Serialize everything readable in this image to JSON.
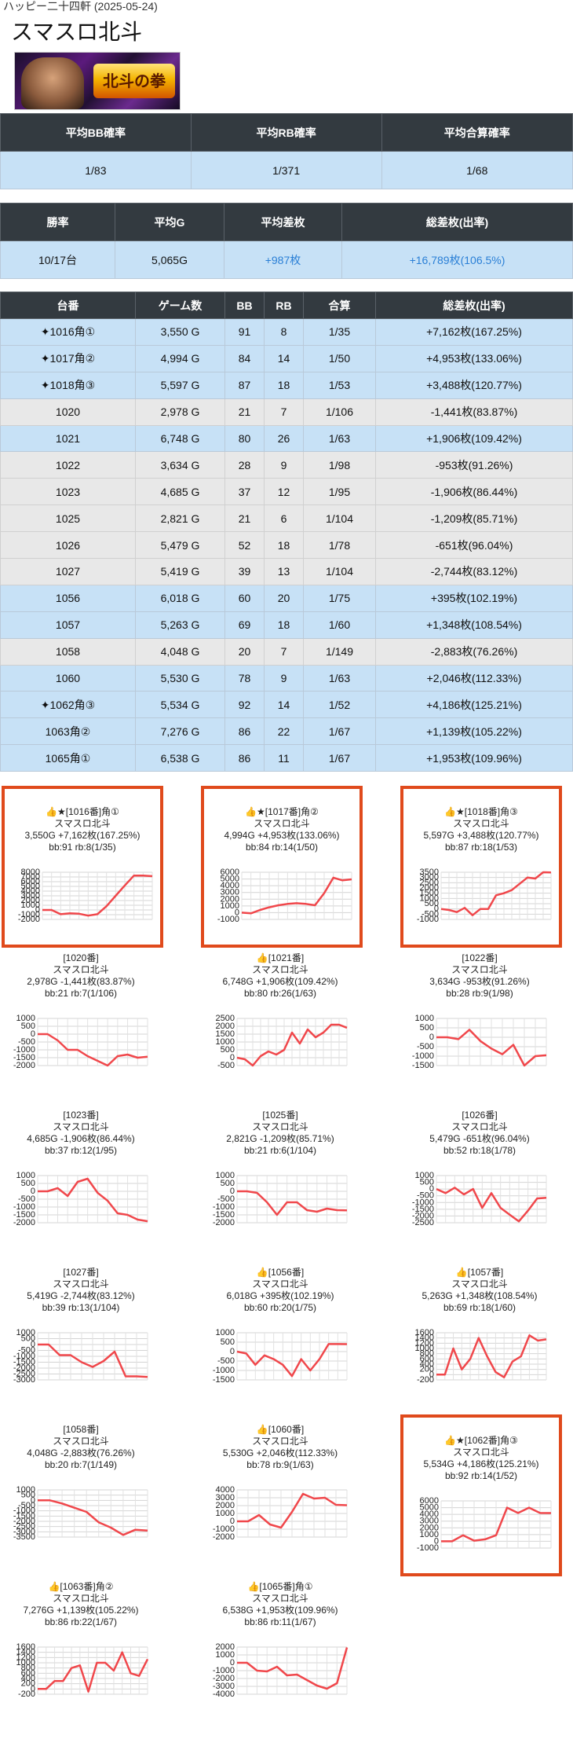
{
  "store_line": "ハッピー二十四軒 (2025-05-24)",
  "machine": "スマスロ北斗",
  "banner_logo": "北斗の拳",
  "summary1": {
    "headers": [
      "平均BB確率",
      "平均RB確率",
      "平均合算確率"
    ],
    "values": [
      "1/83",
      "1/371",
      "1/68"
    ]
  },
  "summary2": {
    "headers": [
      "勝率",
      "平均G",
      "平均差枚",
      "総差枚(出率)"
    ],
    "values": [
      "10/17台",
      "5,065G",
      "+987枚",
      "+16,789枚(106.5%)"
    ]
  },
  "table": {
    "headers": [
      "台番",
      "ゲーム数",
      "BB",
      "RB",
      "合算",
      "総差枚(出率)"
    ],
    "rows": [
      {
        "id": "1016角①",
        "spark": true,
        "games": "3,550 G",
        "bb": "91",
        "rb": "8",
        "total": "1/35",
        "diff": "+7,162枚(167.25%)",
        "color": "blue"
      },
      {
        "id": "1017角②",
        "spark": true,
        "games": "4,994 G",
        "bb": "84",
        "rb": "14",
        "total": "1/50",
        "diff": "+4,953枚(133.06%)",
        "color": "blue"
      },
      {
        "id": "1018角③",
        "spark": true,
        "games": "5,597 G",
        "bb": "87",
        "rb": "18",
        "total": "1/53",
        "diff": "+3,488枚(120.77%)",
        "color": "blue"
      },
      {
        "id": "1020",
        "spark": false,
        "games": "2,978 G",
        "bb": "21",
        "rb": "7",
        "total": "1/106",
        "diff": "-1,441枚(83.87%)",
        "color": "gray"
      },
      {
        "id": "1021",
        "spark": false,
        "games": "6,748 G",
        "bb": "80",
        "rb": "26",
        "total": "1/63",
        "diff": "+1,906枚(109.42%)",
        "color": "blue"
      },
      {
        "id": "1022",
        "spark": false,
        "games": "3,634 G",
        "bb": "28",
        "rb": "9",
        "total": "1/98",
        "diff": "-953枚(91.26%)",
        "color": "gray"
      },
      {
        "id": "1023",
        "spark": false,
        "games": "4,685 G",
        "bb": "37",
        "rb": "12",
        "total": "1/95",
        "diff": "-1,906枚(86.44%)",
        "color": "gray"
      },
      {
        "id": "1025",
        "spark": false,
        "games": "2,821 G",
        "bb": "21",
        "rb": "6",
        "total": "1/104",
        "diff": "-1,209枚(85.71%)",
        "color": "gray"
      },
      {
        "id": "1026",
        "spark": false,
        "games": "5,479 G",
        "bb": "52",
        "rb": "18",
        "total": "1/78",
        "diff": "-651枚(96.04%)",
        "color": "gray"
      },
      {
        "id": "1027",
        "spark": false,
        "games": "5,419 G",
        "bb": "39",
        "rb": "13",
        "total": "1/104",
        "diff": "-2,744枚(83.12%)",
        "color": "gray"
      },
      {
        "id": "1056",
        "spark": false,
        "games": "6,018 G",
        "bb": "60",
        "rb": "20",
        "total": "1/75",
        "diff": "+395枚(102.19%)",
        "color": "blue"
      },
      {
        "id": "1057",
        "spark": false,
        "games": "5,263 G",
        "bb": "69",
        "rb": "18",
        "total": "1/60",
        "diff": "+1,348枚(108.54%)",
        "color": "blue"
      },
      {
        "id": "1058",
        "spark": false,
        "games": "4,048 G",
        "bb": "20",
        "rb": "7",
        "total": "1/149",
        "diff": "-2,883枚(76.26%)",
        "color": "gray"
      },
      {
        "id": "1060",
        "spark": false,
        "games": "5,530 G",
        "bb": "78",
        "rb": "9",
        "total": "1/63",
        "diff": "+2,046枚(112.33%)",
        "color": "blue"
      },
      {
        "id": "1062角③",
        "spark": true,
        "games": "5,534 G",
        "bb": "92",
        "rb": "14",
        "total": "1/52",
        "diff": "+4,186枚(125.21%)",
        "color": "blue"
      },
      {
        "id": "1063角②",
        "spark": false,
        "games": "7,276 G",
        "bb": "86",
        "rb": "22",
        "total": "1/67",
        "diff": "+1,139枚(105.22%)",
        "color": "blue"
      },
      {
        "id": "1065角①",
        "spark": false,
        "games": "6,538 G",
        "bb": "86",
        "rb": "11",
        "total": "1/67",
        "diff": "+1,953枚(109.96%)",
        "color": "blue"
      }
    ]
  },
  "colors": {
    "header_bg": "#333a40",
    "blue_row": "#c7e1f6",
    "gray_row": "#e8e8e8",
    "plus": "#2a7fd6",
    "highlight": "#e04a1c",
    "line": "#f0474b"
  },
  "chart_data": [
    {
      "type": "line",
      "title": "👍★[1016番]角①",
      "line1": "スマスロ北斗",
      "line2": "3,550G +7,162枚(167.25%)",
      "line3": "bb:91 rb:8(1/35)",
      "highlight": true,
      "yticks": [
        8000,
        7000,
        6000,
        5000,
        4000,
        3000,
        2000,
        1000,
        0,
        -1000,
        -2000
      ],
      "ylim": [
        -2000,
        8000
      ],
      "y": [
        0,
        0,
        -900,
        -700,
        -800,
        -1200,
        -900,
        800,
        3000,
        5200,
        7300,
        7300,
        7162
      ]
    },
    {
      "type": "line",
      "title": "👍★[1017番]角②",
      "line1": "スマスロ北斗",
      "line2": "4,994G +4,953枚(133.06%)",
      "line3": "bb:84 rb:14(1/50)",
      "highlight": true,
      "yticks": [
        6000,
        5000,
        4000,
        3000,
        2000,
        1000,
        0,
        -1000
      ],
      "ylim": [
        -1000,
        6000
      ],
      "y": [
        0,
        -100,
        400,
        800,
        1100,
        1300,
        1400,
        1300,
        1100,
        2900,
        5200,
        4800,
        4953
      ]
    },
    {
      "type": "line",
      "title": "👍★[1018番]角③",
      "line1": "スマスロ北斗",
      "line2": "5,597G +3,488枚(120.77%)",
      "line3": "bb:87 rb:18(1/53)",
      "highlight": true,
      "yticks": [
        3500,
        3000,
        2500,
        2000,
        1500,
        1000,
        500,
        0,
        -500,
        -1000
      ],
      "ylim": [
        -1000,
        3500
      ],
      "y": [
        0,
        -100,
        -300,
        100,
        -600,
        0,
        0,
        1300,
        1500,
        1800,
        2400,
        3000,
        2900,
        3500,
        3488
      ]
    },
    {
      "type": "line",
      "title": "[1020番]",
      "line1": "スマスロ北斗",
      "line2": "2,978G -1,441枚(83.87%)",
      "line3": "bb:21 rb:7(1/106)",
      "highlight": false,
      "yticks": [
        1000,
        500,
        0,
        -500,
        -1000,
        -1500,
        -2000
      ],
      "ylim": [
        -2000,
        1000
      ],
      "y": [
        0,
        0,
        -400,
        -1000,
        -1000,
        -1400,
        -1700,
        -2000,
        -1400,
        -1300,
        -1500,
        -1441
      ]
    },
    {
      "type": "line",
      "title": "👍[1021番]",
      "line1": "スマスロ北斗",
      "line2": "6,748G +1,906枚(109.42%)",
      "line3": "bb:80 rb:26(1/63)",
      "highlight": false,
      "yticks": [
        2500,
        2000,
        1500,
        1000,
        500,
        0,
        -500
      ],
      "ylim": [
        -500,
        2500
      ],
      "y": [
        0,
        -100,
        -500,
        100,
        400,
        200,
        500,
        1600,
        900,
        1800,
        1300,
        1600,
        2100,
        2100,
        1906
      ]
    },
    {
      "type": "line",
      "title": "[1022番]",
      "line1": "スマスロ北斗",
      "line2": "3,634G -953枚(91.26%)",
      "line3": "bb:28 rb:9(1/98)",
      "highlight": false,
      "yticks": [
        1000,
        500,
        0,
        -500,
        -1000,
        -1500
      ],
      "ylim": [
        -1500,
        1000
      ],
      "y": [
        0,
        0,
        -100,
        400,
        -200,
        -600,
        -900,
        -400,
        -1500,
        -1000,
        -953
      ]
    },
    {
      "type": "line",
      "title": "[1023番]",
      "line1": "スマスロ北斗",
      "line2": "4,685G -1,906枚(86.44%)",
      "line3": "bb:37 rb:12(1/95)",
      "highlight": false,
      "yticks": [
        1000,
        500,
        0,
        -500,
        -1000,
        -1500,
        -2000
      ],
      "ylim": [
        -2000,
        1000
      ],
      "y": [
        0,
        0,
        200,
        -300,
        600,
        800,
        -100,
        -600,
        -1400,
        -1500,
        -1800,
        -1906
      ]
    },
    {
      "type": "line",
      "title": "[1025番]",
      "line1": "スマスロ北斗",
      "line2": "2,821G -1,209枚(85.71%)",
      "line3": "bb:21 rb:6(1/104)",
      "highlight": false,
      "yticks": [
        1000,
        500,
        0,
        -500,
        -1000,
        -1500,
        -2000
      ],
      "ylim": [
        -2000,
        1000
      ],
      "y": [
        0,
        0,
        -100,
        -700,
        -1500,
        -700,
        -700,
        -1200,
        -1300,
        -1100,
        -1200,
        -1209
      ]
    },
    {
      "type": "line",
      "title": "[1026番]",
      "line1": "スマスロ北斗",
      "line2": "5,479G -651枚(96.04%)",
      "line3": "bb:52 rb:18(1/78)",
      "highlight": false,
      "yticks": [
        1000,
        500,
        0,
        -500,
        -1000,
        -1500,
        -2000,
        -2500
      ],
      "ylim": [
        -2500,
        1000
      ],
      "y": [
        0,
        -300,
        100,
        -400,
        0,
        -1400,
        -300,
        -1400,
        -1900,
        -2400,
        -1600,
        -700,
        -651
      ]
    },
    {
      "type": "line",
      "title": "[1027番]",
      "line1": "スマスロ北斗",
      "line2": "5,419G -2,744枚(83.12%)",
      "line3": "bb:39 rb:13(1/104)",
      "highlight": false,
      "yticks": [
        1000,
        500,
        0,
        -500,
        -1000,
        -1500,
        -2000,
        -2500,
        -3000
      ],
      "ylim": [
        -3000,
        1000
      ],
      "y": [
        0,
        0,
        -900,
        -900,
        -1500,
        -1900,
        -1400,
        -600,
        -2700,
        -2700,
        -2744
      ]
    },
    {
      "type": "line",
      "title": "👍[1056番]",
      "line1": "スマスロ北斗",
      "line2": "6,018G +395枚(102.19%)",
      "line3": "bb:60 rb:20(1/75)",
      "highlight": false,
      "yticks": [
        1000,
        500,
        0,
        -500,
        -1000,
        -1500
      ],
      "ylim": [
        -1500,
        1000
      ],
      "y": [
        0,
        -100,
        -700,
        -200,
        -400,
        -700,
        -1300,
        -400,
        -1000,
        -400,
        400,
        400,
        395
      ]
    },
    {
      "type": "line",
      "title": "👍[1057番]",
      "line1": "スマスロ北斗",
      "line2": "5,263G +1,348枚(108.54%)",
      "line3": "bb:69 rb:18(1/60)",
      "highlight": false,
      "yticks": [
        1600,
        1400,
        1200,
        1000,
        800,
        600,
        400,
        200,
        0,
        -200
      ],
      "ylim": [
        -200,
        1600
      ],
      "y": [
        0,
        0,
        1000,
        200,
        600,
        1400,
        700,
        100,
        -100,
        500,
        700,
        1500,
        1300,
        1348
      ]
    },
    {
      "type": "line",
      "title": "[1058番]",
      "line1": "スマスロ北斗",
      "line2": "4,048G -2,883枚(76.26%)",
      "line3": "bb:20 rb:7(1/149)",
      "highlight": false,
      "yticks": [
        1000,
        500,
        0,
        -500,
        -1000,
        -1500,
        -2000,
        -2500,
        -3000,
        -3500
      ],
      "ylim": [
        -3500,
        1000
      ],
      "y": [
        0,
        0,
        -300,
        -700,
        -1100,
        -2100,
        -2600,
        -3300,
        -2800,
        -2883
      ]
    },
    {
      "type": "line",
      "title": "👍[1060番]",
      "line1": "スマスロ北斗",
      "line2": "5,530G +2,046枚(112.33%)",
      "line3": "bb:78 rb:9(1/63)",
      "highlight": false,
      "yticks": [
        4000,
        3000,
        2000,
        1000,
        0,
        -1000,
        -2000
      ],
      "ylim": [
        -2000,
        4000
      ],
      "y": [
        0,
        0,
        800,
        -400,
        -800,
        1200,
        3500,
        2900,
        3000,
        2100,
        2046
      ]
    },
    {
      "type": "line",
      "title": "👍★[1062番]角③",
      "line1": "スマスロ北斗",
      "line2": "5,534G +4,186枚(125.21%)",
      "line3": "bb:92 rb:14(1/52)",
      "highlight": true,
      "yticks": [
        6000,
        5000,
        4000,
        3000,
        2000,
        1000,
        0,
        -1000
      ],
      "ylim": [
        -1000,
        6000
      ],
      "y": [
        0,
        0,
        900,
        100,
        300,
        900,
        5000,
        4200,
        5000,
        4200,
        4186
      ]
    },
    {
      "type": "line",
      "title": "👍[1063番]角②",
      "line1": "スマスロ北斗",
      "line2": "7,276G +1,139枚(105.22%)",
      "line3": "bb:86 rb:22(1/67)",
      "highlight": false,
      "yticks": [
        1600,
        1400,
        1200,
        1000,
        800,
        600,
        400,
        200,
        0,
        -200
      ],
      "ylim": [
        -200,
        1600
      ],
      "y": [
        0,
        0,
        300,
        300,
        800,
        900,
        -100,
        1000,
        1000,
        700,
        1400,
        600,
        500,
        1139
      ]
    },
    {
      "type": "line",
      "title": "👍[1065番]角①",
      "line1": "スマスロ北斗",
      "line2": "6,538G +1,953枚(109.96%)",
      "line3": "bb:86 rb:11(1/67)",
      "highlight": false,
      "yticks": [
        2000,
        1000,
        0,
        -1000,
        -2000,
        -3000,
        -4000
      ],
      "ylim": [
        -4000,
        2000
      ],
      "y": [
        0,
        0,
        -1000,
        -1100,
        -500,
        -1600,
        -1500,
        -2200,
        -2900,
        -3300,
        -2600,
        1953
      ]
    }
  ]
}
